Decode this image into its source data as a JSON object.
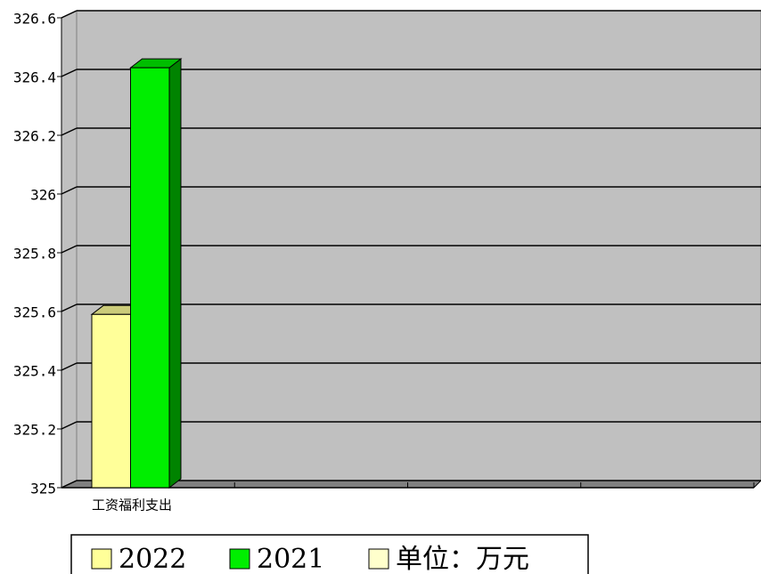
{
  "chart_data": {
    "type": "bar3d",
    "categories": [
      "工资福利支出",
      null,
      null,
      null
    ],
    "series": [
      {
        "name": "2022",
        "color": "#ffff99",
        "values": [
          325.59,
          null,
          null,
          null
        ]
      },
      {
        "name": "2021",
        "color": "#00ee00",
        "values": [
          326.43,
          null,
          null,
          null
        ]
      },
      {
        "name": "单位：万元",
        "color": "#ffffcc",
        "values": [
          null,
          null,
          null,
          null
        ]
      }
    ],
    "ylim": [
      325,
      326.6
    ],
    "yticks": [
      325,
      325.2,
      325.4,
      325.6,
      325.8,
      326,
      326.2,
      326.4,
      326.6
    ],
    "grid": true
  }
}
